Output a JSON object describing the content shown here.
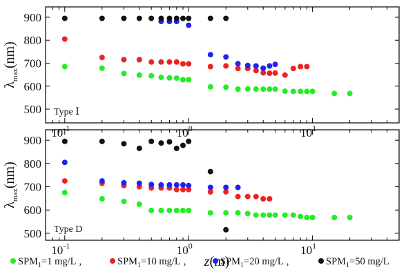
{
  "chart_data": [
    {
      "type": "scatter",
      "panel_label": "Type Ⅰ",
      "x_scale": "log",
      "xlim": [
        0.07,
        50
      ],
      "ylim": [
        440,
        945
      ],
      "ylabel": "λmax(nm)",
      "ylabel_main": "λ",
      "ylabel_sub": "max",
      "ylabel_unit": "(nm)",
      "yticks": [
        500,
        600,
        700,
        800,
        900
      ],
      "xticks": [
        {
          "value": 0.1,
          "base": "10",
          "exp": "-1"
        },
        {
          "value": 1,
          "base": "10",
          "exp": "0"
        },
        {
          "value": 10,
          "base": "10",
          "exp": "1"
        }
      ],
      "series": [
        {
          "key": "spm1",
          "color": "#22ee22",
          "x": [
            0.1,
            0.2,
            0.3,
            0.4,
            0.5,
            0.6,
            0.7,
            0.8,
            0.9,
            1,
            1.5,
            2,
            2.5,
            3,
            3.5,
            4,
            4.5,
            5,
            6,
            7,
            8,
            9,
            10,
            15,
            20
          ],
          "y": [
            685,
            678,
            655,
            648,
            645,
            638,
            636,
            635,
            628,
            628,
            597,
            595,
            587,
            588,
            587,
            587,
            587,
            587,
            578,
            577,
            577,
            577,
            577,
            568,
            568
          ]
        },
        {
          "key": "spm10",
          "color": "#ee2222",
          "x": [
            0.1,
            0.2,
            0.3,
            0.4,
            0.5,
            0.6,
            0.7,
            0.8,
            0.9,
            1,
            1.5,
            2,
            2.5,
            3,
            3.5,
            4,
            4.5,
            5,
            6,
            7,
            8,
            9
          ],
          "y": [
            805,
            725,
            715,
            715,
            705,
            705,
            705,
            705,
            697,
            697,
            685,
            688,
            677,
            677,
            668,
            658,
            656,
            657,
            648,
            677,
            685,
            685
          ]
        },
        {
          "key": "spm20",
          "color": "#2222ee",
          "x": [
            0.6,
            0.7,
            0.8,
            1,
            1.5,
            2,
            2.5,
            3,
            3.5,
            4,
            4.5,
            5
          ],
          "y": [
            882,
            882,
            882,
            865,
            737,
            727,
            698,
            690,
            688,
            678,
            688,
            695
          ]
        },
        {
          "key": "spm50",
          "color": "#111111",
          "x": [
            0.1,
            0.2,
            0.3,
            0.4,
            0.5,
            0.6,
            0.7,
            0.8,
            0.9,
            1,
            1.5,
            2
          ],
          "y": [
            895,
            895,
            895,
            895,
            895,
            895,
            895,
            895,
            895,
            895,
            895,
            895
          ]
        }
      ]
    },
    {
      "type": "scatter",
      "panel_label": "Type D",
      "x_scale": "log",
      "xlim": [
        0.07,
        50
      ],
      "ylim": [
        470,
        945
      ],
      "xlabel": "z(m)",
      "xlabel_var": "z",
      "xlabel_unit": "(m)",
      "ylabel": "λmax(nm)",
      "ylabel_main": "λ",
      "ylabel_sub": "max",
      "ylabel_unit": "(nm)",
      "yticks": [
        500,
        600,
        700,
        800,
        900
      ],
      "xticks": [
        {
          "value": 0.1,
          "base": "10",
          "exp": "-1"
        },
        {
          "value": 1,
          "base": "10",
          "exp": "0"
        },
        {
          "value": 10,
          "base": "10",
          "exp": "1"
        }
      ],
      "series": [
        {
          "key": "spm1",
          "color": "#22ee22",
          "x": [
            0.1,
            0.2,
            0.3,
            0.4,
            0.5,
            0.6,
            0.7,
            0.8,
            0.9,
            1,
            1.5,
            2,
            2.5,
            3,
            3.5,
            4,
            4.5,
            5,
            6,
            7,
            8,
            9,
            10,
            15,
            20
          ],
          "y": [
            675,
            648,
            637,
            625,
            598,
            598,
            598,
            598,
            598,
            598,
            588,
            588,
            588,
            585,
            578,
            578,
            578,
            578,
            578,
            578,
            572,
            568,
            568,
            568,
            568
          ]
        },
        {
          "key": "spm10",
          "color": "#ee2222",
          "x": [
            0.1,
            0.2,
            0.3,
            0.4,
            0.5,
            0.6,
            0.7,
            0.8,
            0.9,
            1,
            1.5,
            2,
            2.5,
            3,
            3.5,
            4,
            4.5
          ],
          "y": [
            725,
            715,
            705,
            700,
            695,
            695,
            695,
            688,
            688,
            688,
            678,
            678,
            658,
            658,
            658,
            648,
            648
          ]
        },
        {
          "key": "spm20",
          "color": "#2222ee",
          "x": [
            0.1,
            0.2,
            0.3,
            0.4,
            0.5,
            0.6,
            0.7,
            0.8,
            0.9,
            1,
            1.5,
            2,
            2.5
          ],
          "y": [
            805,
            725,
            717,
            715,
            710,
            708,
            708,
            708,
            708,
            705,
            697,
            697,
            697
          ]
        },
        {
          "key": "spm50",
          "color": "#111111",
          "x": [
            0.1,
            0.2,
            0.3,
            0.4,
            0.5,
            0.6,
            0.7,
            0.8,
            0.9,
            1,
            1.5,
            2
          ],
          "y": [
            895,
            895,
            885,
            865,
            895,
            888,
            893,
            865,
            878,
            895,
            765,
            515
          ]
        }
      ]
    }
  ],
  "legend": {
    "placement": "bottom",
    "items": [
      {
        "key": "spm1",
        "label": "SPM",
        "sub": "1",
        "value": "=1 mg/L",
        "sep": ",",
        "color": "#22ee22"
      },
      {
        "key": "spm10",
        "label": "SPM",
        "sub": "1",
        "value": "=10 mg/L",
        "sep": ",",
        "color": "#ee2222"
      },
      {
        "key": "spm20",
        "label": "SPM",
        "sub": "1",
        "value": "=20 mg/L",
        "sep": ",",
        "color": "#2222ee"
      },
      {
        "key": "spm50",
        "label": "SPM",
        "sub": "1",
        "value": "=50 mg/L",
        "sep": "",
        "color": "#111111"
      }
    ]
  }
}
